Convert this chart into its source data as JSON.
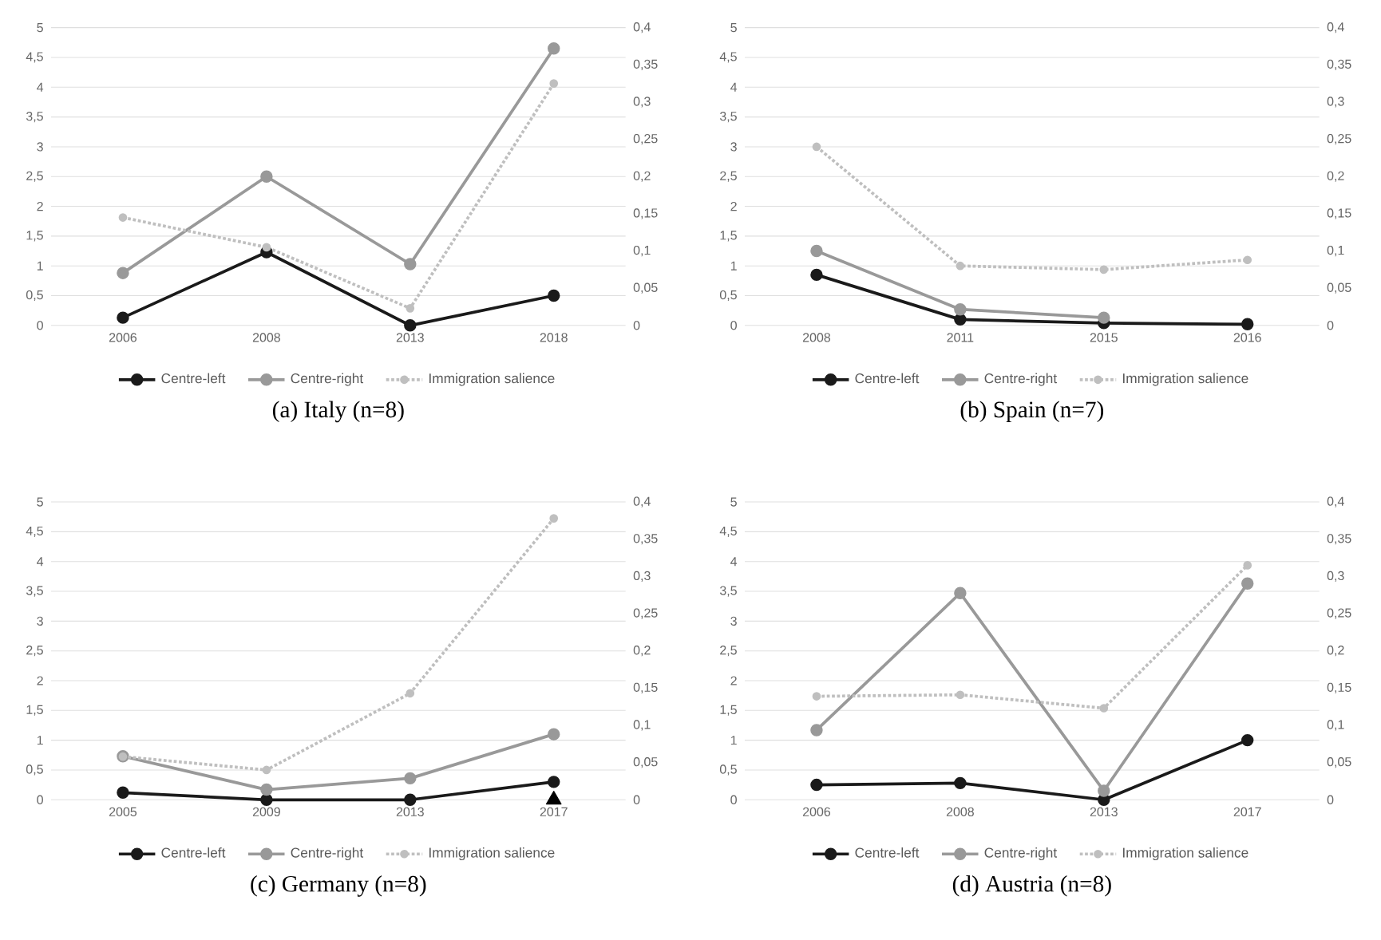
{
  "chart_data": [
    {
      "type": "line",
      "title": "(a) Italy (n=8)",
      "categories": [
        "2006",
        "2008",
        "2013",
        "2018"
      ],
      "ylim": [
        0,
        5
      ],
      "y2lim": [
        0,
        0.4
      ],
      "yticks": [
        0,
        {
          "value": 0.5,
          "label": "0,5"
        },
        1,
        {
          "value": 1.5,
          "label": "1,5"
        },
        2,
        {
          "value": 2.5,
          "label": "2,5"
        },
        3,
        {
          "value": 3.5,
          "label": "3,5"
        },
        4,
        {
          "value": 4.5,
          "label": "4,5"
        },
        5
      ],
      "y2ticks": [
        0,
        {
          "value": 0.05,
          "label": "0,05"
        },
        {
          "value": 0.1,
          "label": "0,1"
        },
        {
          "value": 0.15,
          "label": "0,15"
        },
        {
          "value": 0.2,
          "label": "0,2"
        },
        {
          "value": 0.25,
          "label": "0,25"
        },
        {
          "value": 0.3,
          "label": "0,3"
        },
        {
          "value": 0.35,
          "label": "0,35"
        },
        {
          "value": 0.4,
          "label": "0,4"
        }
      ],
      "grid": "y",
      "legend": "bottom",
      "marker": "circle",
      "series": [
        {
          "name": "Centre-left",
          "color": "#1a1a1a",
          "values": [
            0.13,
            1.23,
            0,
            0.5
          ],
          "line_style": "solid"
        },
        {
          "name": "Centre-right",
          "color": "#999999",
          "values": [
            0.88,
            2.5,
            1.03,
            4.65
          ],
          "line_style": "solid"
        },
        {
          "name": "Immigration salience",
          "color": "#bfbfbf",
          "values": [
            0.145,
            0.105,
            0.023,
            0.325
          ],
          "axis": "y2",
          "line_style": "dotted"
        }
      ]
    },
    {
      "type": "line",
      "title": "(b) Spain (n=7)",
      "categories": [
        "2008",
        "2011",
        "2015",
        "2016"
      ],
      "ylim": [
        0,
        5
      ],
      "y2lim": [
        0,
        0.4
      ],
      "yticks": [
        0,
        {
          "value": 0.5,
          "label": "0,5"
        },
        1,
        {
          "value": 1.5,
          "label": "1,5"
        },
        2,
        {
          "value": 2.5,
          "label": "2,5"
        },
        3,
        {
          "value": 3.5,
          "label": "3,5"
        },
        4,
        {
          "value": 4.5,
          "label": "4,5"
        },
        5
      ],
      "y2ticks": [
        0,
        {
          "value": 0.05,
          "label": "0,05"
        },
        {
          "value": 0.1,
          "label": "0,1"
        },
        {
          "value": 0.15,
          "label": "0,15"
        },
        {
          "value": 0.2,
          "label": "0,2"
        },
        {
          "value": 0.25,
          "label": "0,25"
        },
        {
          "value": 0.3,
          "label": "0,3"
        },
        {
          "value": 0.35,
          "label": "0,35"
        },
        {
          "value": 0.4,
          "label": "0,4"
        }
      ],
      "grid": "y",
      "legend": "bottom",
      "marker": "circle",
      "series": [
        {
          "name": "Centre-left",
          "color": "#1a1a1a",
          "values": [
            0.85,
            0.1,
            0.04,
            0.02
          ],
          "line_style": "solid"
        },
        {
          "name": "Centre-right",
          "color": "#999999",
          "values": [
            1.25,
            0.27,
            0.13,
            null
          ],
          "line_style": "solid"
        },
        {
          "name": "Immigration salience",
          "color": "#bfbfbf",
          "values": [
            0.24,
            0.08,
            0.075,
            0.088
          ],
          "axis": "y2",
          "line_style": "dotted"
        }
      ]
    },
    {
      "type": "line",
      "title": "(c) Germany (n=8)",
      "categories": [
        "2005",
        "2009",
        "2013",
        "2017"
      ],
      "ylim": [
        0,
        5
      ],
      "y2lim": [
        0,
        0.4
      ],
      "yticks": [
        0,
        {
          "value": 0.5,
          "label": "0,5"
        },
        1,
        {
          "value": 1.5,
          "label": "1,5"
        },
        2,
        {
          "value": 2.5,
          "label": "2,5"
        },
        3,
        {
          "value": 3.5,
          "label": "3,5"
        },
        4,
        {
          "value": 4.5,
          "label": "4,5"
        },
        5
      ],
      "y2ticks": [
        0,
        {
          "value": 0.05,
          "label": "0,05"
        },
        {
          "value": 0.1,
          "label": "0,1"
        },
        {
          "value": 0.15,
          "label": "0,15"
        },
        {
          "value": 0.2,
          "label": "0,2"
        },
        {
          "value": 0.25,
          "label": "0,25"
        },
        {
          "value": 0.3,
          "label": "0,3"
        },
        {
          "value": 0.35,
          "label": "0,35"
        },
        {
          "value": 0.4,
          "label": "0,4"
        }
      ],
      "grid": "y",
      "legend": "bottom",
      "marker": "circle",
      "series": [
        {
          "name": "Centre-left",
          "color": "#1a1a1a",
          "values": [
            0.12,
            0,
            0,
            0.3
          ],
          "line_style": "solid"
        },
        {
          "name": "Centre-right",
          "color": "#999999",
          "values": [
            0.73,
            0.17,
            0.36,
            1.1
          ],
          "line_style": "solid"
        },
        {
          "name": "Immigration salience",
          "color": "#bfbfbf",
          "values": [
            0.058,
            0.04,
            0.143,
            0.378
          ],
          "axis": "y2",
          "line_style": "dotted"
        },
        {
          "type": "scatter",
          "color": "#000000",
          "values": [
            null,
            null,
            null,
            0
          ],
          "marker": "triangle"
        }
      ]
    },
    {
      "type": "line",
      "title": "(d) Austria (n=8)",
      "categories": [
        "2006",
        "2008",
        "2013",
        "2017"
      ],
      "ylim": [
        0,
        5
      ],
      "y2lim": [
        0,
        0.4
      ],
      "yticks": [
        0,
        {
          "value": 0.5,
          "label": "0,5"
        },
        1,
        {
          "value": 1.5,
          "label": "1,5"
        },
        2,
        {
          "value": 2.5,
          "label": "2,5"
        },
        3,
        {
          "value": 3.5,
          "label": "3,5"
        },
        4,
        {
          "value": 4.5,
          "label": "4,5"
        },
        5
      ],
      "y2ticks": [
        0,
        {
          "value": 0.05,
          "label": "0,05"
        },
        {
          "value": 0.1,
          "label": "0,1"
        },
        {
          "value": 0.15,
          "label": "0,15"
        },
        {
          "value": 0.2,
          "label": "0,2"
        },
        {
          "value": 0.25,
          "label": "0,25"
        },
        {
          "value": 0.3,
          "label": "0,3"
        },
        {
          "value": 0.35,
          "label": "0,35"
        },
        {
          "value": 0.4,
          "label": "0,4"
        }
      ],
      "grid": "y",
      "legend": "bottom",
      "marker": "circle",
      "series": [
        {
          "name": "Centre-left",
          "color": "#1a1a1a",
          "values": [
            0.25,
            0.28,
            0,
            1.0
          ],
          "line_style": "solid"
        },
        {
          "name": "Centre-right",
          "color": "#999999",
          "values": [
            1.17,
            3.47,
            0.15,
            3.63
          ],
          "line_style": "solid"
        },
        {
          "name": "Immigration salience",
          "color": "#bfbfbf",
          "values": [
            0.139,
            0.141,
            0.123,
            0.315
          ],
          "axis": "y2",
          "line_style": "dotted"
        }
      ]
    }
  ]
}
